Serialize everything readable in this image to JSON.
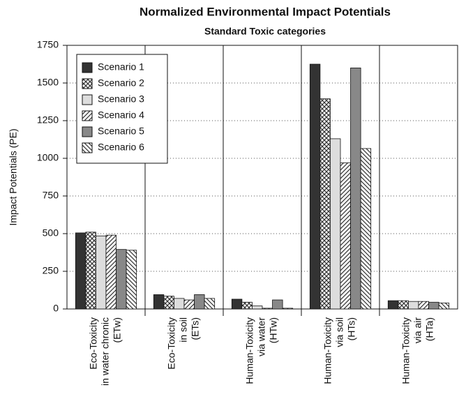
{
  "chart_data": {
    "type": "bar",
    "title": "Normalized Environmental Impact Potentials",
    "subtitle": "Standard Toxic categories",
    "y_label": "Impact Potentials (PE)",
    "categories": [
      [
        "Eco-Toxicity",
        "in water chronic",
        "(ETw)"
      ],
      [
        "Eco-Toxicity",
        "in soil",
        "(ETs)"
      ],
      [
        "Human-Toxicity",
        "via water",
        "(HTw)"
      ],
      [
        "Human-Toxicity",
        "via soil",
        "(HTs)"
      ],
      [
        "Human-Toxicity",
        "via air",
        "(HTa)"
      ]
    ],
    "series": [
      {
        "name": "Scenario 1",
        "color": "#333333",
        "pattern": "solid",
        "values": [
          505,
          95,
          65,
          1625,
          55
        ]
      },
      {
        "name": "Scenario 2",
        "color": "#333333",
        "pattern": "crosshatch",
        "values": [
          510,
          85,
          45,
          1395,
          55
        ]
      },
      {
        "name": "Scenario 3",
        "color": "#dddddd",
        "pattern": "solid",
        "values": [
          485,
          70,
          20,
          1130,
          50
        ]
      },
      {
        "name": "Scenario 4",
        "color": "#333333",
        "pattern": "hatch",
        "values": [
          490,
          60,
          5,
          970,
          50
        ]
      },
      {
        "name": "Scenario 5",
        "color": "#888888",
        "pattern": "solid",
        "values": [
          395,
          95,
          60,
          1600,
          45
        ]
      },
      {
        "name": "Scenario 6",
        "color": "#333333",
        "pattern": "backhatch",
        "values": [
          390,
          70,
          5,
          1065,
          40
        ]
      }
    ],
    "ylim": [
      0,
      1750
    ],
    "yticks": [
      0,
      250,
      500,
      750,
      1000,
      1250,
      1500,
      1750
    ],
    "grid": true,
    "legend": "upper left"
  }
}
